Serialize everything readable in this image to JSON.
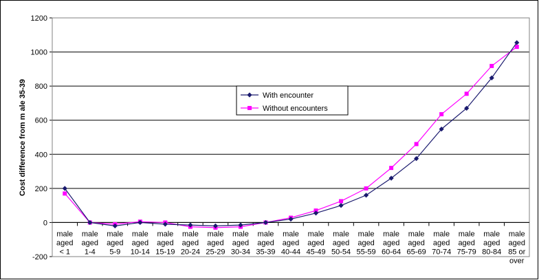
{
  "chart_data": {
    "type": "line",
    "title": "",
    "xlabel": "",
    "ylabel": "Cost difference from m ale 35-39",
    "ylim": [
      -200,
      1200
    ],
    "yticks": [
      -200,
      0,
      200,
      400,
      600,
      800,
      1000,
      1200
    ],
    "grid": true,
    "legend": "center-right",
    "categories": [
      [
        "male",
        "aged",
        "< 1"
      ],
      [
        "male",
        "aged",
        "1-4"
      ],
      [
        "male",
        "aged",
        "5-9"
      ],
      [
        "male",
        "aged",
        "10-14"
      ],
      [
        "male",
        "aged",
        "15-19"
      ],
      [
        "male",
        "aged",
        "20-24"
      ],
      [
        "male",
        "aged",
        "25-29"
      ],
      [
        "male",
        "aged",
        "30-34"
      ],
      [
        "male",
        "aged",
        "35-39"
      ],
      [
        "male",
        "aged",
        "40-44"
      ],
      [
        "male",
        "aged",
        "45-49"
      ],
      [
        "male",
        "aged",
        "50-54"
      ],
      [
        "male",
        "aged",
        "55-59"
      ],
      [
        "male",
        "aged",
        "60-64"
      ],
      [
        "male",
        "aged",
        "65-69"
      ],
      [
        "male",
        "aged",
        "70-74"
      ],
      [
        "male",
        "aged",
        "75-79"
      ],
      [
        "male",
        "aged",
        "80-84"
      ],
      [
        "male",
        "aged",
        "85 or",
        "over"
      ]
    ],
    "series": [
      {
        "name": "With encounter",
        "color": "#1a1a6e",
        "marker": "diamond",
        "values": [
          200,
          0,
          -20,
          0,
          -10,
          -15,
          -20,
          -15,
          0,
          20,
          55,
          100,
          160,
          260,
          375,
          548,
          670,
          848,
          1055
        ]
      },
      {
        "name": "Without encounters",
        "color": "#ff00ff",
        "marker": "square",
        "values": [
          170,
          0,
          -10,
          5,
          0,
          -25,
          -30,
          -25,
          0,
          28,
          70,
          125,
          200,
          320,
          460,
          635,
          755,
          918,
          1030
        ]
      }
    ]
  }
}
